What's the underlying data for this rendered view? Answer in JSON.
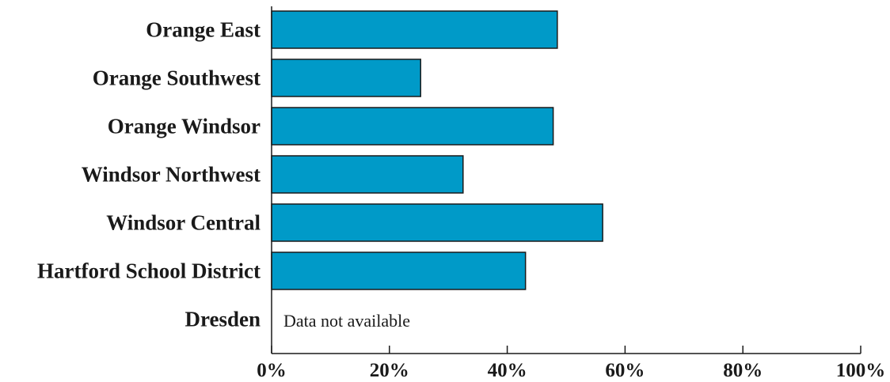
{
  "chart_data": {
    "type": "bar",
    "orientation": "horizontal",
    "categories": [
      "Orange East",
      "Orange Southwest",
      "Orange Windsor",
      "Windsor Northwest",
      "Windsor Central",
      "Hartford School District",
      "Dresden"
    ],
    "values": [
      48.5,
      25.3,
      47.8,
      32.5,
      56.2,
      43.1,
      null
    ],
    "missing_label": "Data not available",
    "x_ticks": [
      "0%",
      "20%",
      "40%",
      "60%",
      "80%",
      "100%"
    ],
    "x_tick_values": [
      0,
      20,
      40,
      60,
      80,
      100
    ],
    "xlim": [
      0,
      100
    ],
    "xlabel": "",
    "ylabel": "",
    "title": "",
    "grid": false,
    "bar_color": "#009ac8"
  }
}
